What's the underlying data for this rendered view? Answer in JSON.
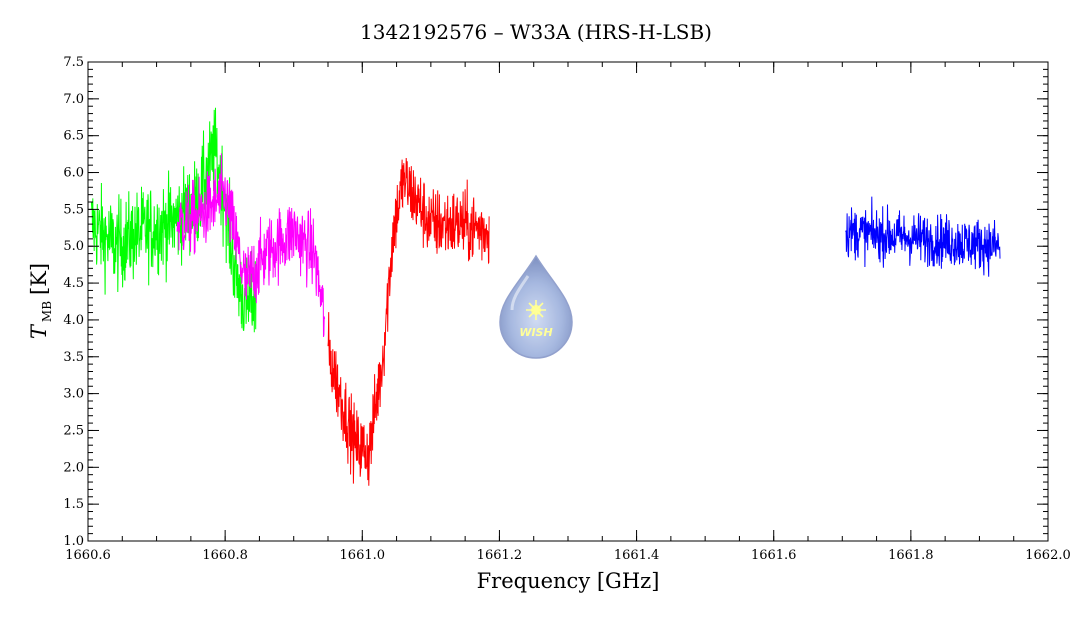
{
  "chart_data": {
    "type": "line",
    "title": "1342192576 – W33A (HRS-H-LSB)",
    "xlabel": "Frequency [GHz]",
    "ylabel": {
      "symbol": "T",
      "subscript": "MB",
      "unit": "[K]"
    },
    "xlim": [
      1660.6,
      1662.0
    ],
    "ylim": [
      1.0,
      7.5
    ],
    "xticks": [
      1660.6,
      1660.8,
      1661.0,
      1661.2,
      1661.4,
      1661.6,
      1661.8,
      1662.0
    ],
    "xtick_labels": [
      "1660.6",
      "1660.8",
      "1661.0",
      "1661.2",
      "1661.4",
      "1661.6",
      "1661.8",
      "1662.0"
    ],
    "yticks": [
      1.0,
      1.5,
      2.0,
      2.5,
      3.0,
      3.5,
      4.0,
      4.5,
      5.0,
      5.5,
      6.0,
      6.5,
      7.0,
      7.5
    ],
    "ytick_labels": [
      "1.0",
      "1.5",
      "2.0",
      "2.5",
      "3.0",
      "3.5",
      "4.0",
      "4.5",
      "5.0",
      "5.5",
      "6.0",
      "6.5",
      "7.0",
      "7.5"
    ],
    "grid": false,
    "series": [
      {
        "color": "#00ff00",
        "x_range": [
          1660.605,
          1660.845
        ],
        "profile_x": [
          1660.605,
          1660.64,
          1660.68,
          1660.72,
          1660.76,
          1660.785,
          1660.8,
          1660.815,
          1660.83,
          1660.845
        ],
        "profile_y": [
          5.3,
          5.0,
          5.2,
          5.3,
          5.6,
          6.3,
          5.6,
          4.6,
          4.2,
          4.3
        ],
        "noise_amplitude": 0.55
      },
      {
        "color": "#ff00ff",
        "x_range": [
          1660.73,
          1660.945
        ],
        "profile_x": [
          1660.73,
          1660.76,
          1660.8,
          1660.83,
          1660.86,
          1660.9,
          1660.93,
          1660.945
        ],
        "profile_y": [
          5.3,
          5.4,
          5.7,
          4.5,
          4.9,
          5.2,
          4.9,
          4.0
        ],
        "noise_amplitude": 0.45
      },
      {
        "color": "#ff0000",
        "x_range": [
          1660.95,
          1661.185
        ],
        "profile_x": [
          1660.95,
          1660.97,
          1660.99,
          1661.01,
          1661.03,
          1661.045,
          1661.06,
          1661.1,
          1661.14,
          1661.185
        ],
        "profile_y": [
          3.6,
          2.9,
          2.3,
          2.2,
          3.5,
          5.2,
          5.9,
          5.3,
          5.3,
          5.2
        ],
        "noise_amplitude": 0.45
      },
      {
        "color": "#0000ff",
        "x_range": [
          1661.705,
          1661.93
        ],
        "profile_x": [
          1661.705,
          1661.93
        ],
        "profile_y": [
          5.2,
          5.0
        ],
        "noise_amplitude": 0.32
      }
    ],
    "logo": {
      "text": "WISH"
    }
  }
}
